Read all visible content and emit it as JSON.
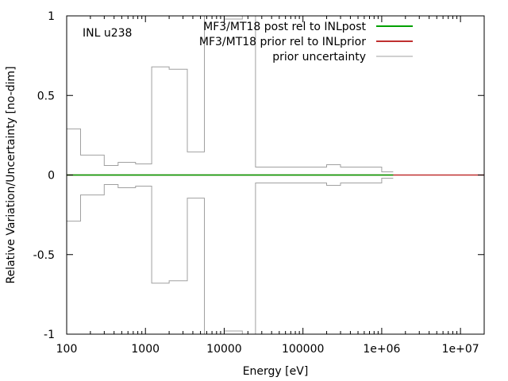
{
  "chart_data": {
    "type": "line",
    "title": "",
    "xlabel": "Energy [eV]",
    "ylabel": "Relative Variation/Uncertainty [no-dim]",
    "x_scale": "log",
    "xlim": [
      100,
      20000000
    ],
    "ylim": [
      -1,
      1
    ],
    "grid": false,
    "legend_position": "top-right",
    "annotation": "INL u238",
    "x_tick_labels": [
      "100",
      "1000",
      "10000",
      "100000",
      "1e+06",
      "1e+07"
    ],
    "x_tick_values": [
      100,
      1000,
      10000,
      100000,
      1000000,
      10000000
    ],
    "y_tick_labels": [
      "-1",
      "-0.5",
      "0",
      "0.5",
      "1"
    ],
    "y_tick_values": [
      -1,
      -0.5,
      0,
      0.5,
      1
    ],
    "series": [
      {
        "name": "MF3/MT18 post rel to INLpost",
        "color": "#00a000",
        "style": "line",
        "x": [
          100,
          1400000
        ],
        "y": [
          0,
          0
        ]
      },
      {
        "name": "MF3/MT18 prior rel to INLprior",
        "color": "#c03030",
        "style": "line",
        "x": [
          100,
          20000000
        ],
        "y": [
          0,
          0
        ]
      },
      {
        "name": "prior uncertainty",
        "color": "#a0a0a0",
        "style": "step",
        "bin_edges": [
          100,
          150,
          300,
          450,
          750,
          1200,
          2000,
          3400,
          5600,
          10000,
          17000,
          25000,
          200000,
          300000,
          500000,
          1000000,
          1400000
        ],
        "values": [
          0.29,
          0.125,
          0.06,
          0.08,
          0.07,
          0.68,
          0.665,
          0.145,
          1.0,
          0.98,
          1.0,
          0.05,
          0.065,
          0.05,
          0.05,
          0.02
        ]
      }
    ]
  }
}
